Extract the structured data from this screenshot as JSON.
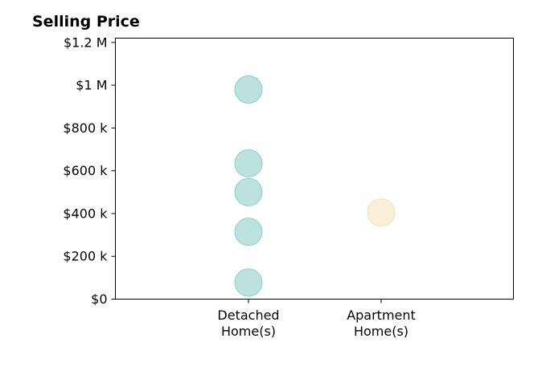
{
  "chart_data": {
    "type": "scatter",
    "title": "Selling Price",
    "xlabel": "",
    "ylabel": "",
    "categories": [
      [
        "Detached",
        "Home(s)"
      ],
      [
        "Apartment",
        "Home(s)"
      ]
    ],
    "ylim": [
      0,
      1220000
    ],
    "yticks": [
      {
        "value": 0,
        "label": "$0"
      },
      {
        "value": 200000,
        "label": "$200 k"
      },
      {
        "value": 400000,
        "label": "$400 k"
      },
      {
        "value": 600000,
        "label": "$600 k"
      },
      {
        "value": 800000,
        "label": "$800 k"
      },
      {
        "value": 1000000,
        "label": "$1 M"
      },
      {
        "value": 1200000,
        "label": "$1.2 M"
      }
    ],
    "grid": false,
    "series": [
      {
        "category": 0,
        "color": "#8ecfc9",
        "stroke": "#7cc3bd",
        "values": [
          980000,
          635000,
          500000,
          315000,
          78000
        ]
      },
      {
        "category": 1,
        "color": "#f6e5c0",
        "stroke": "#f0d9aa",
        "values": [
          405000
        ]
      }
    ]
  }
}
